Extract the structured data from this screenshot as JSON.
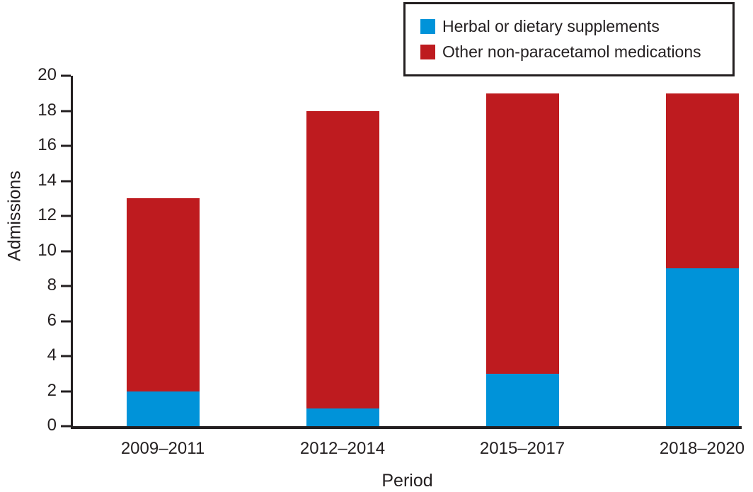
{
  "figure": {
    "background": "#ffffff",
    "text_color": "#231F20",
    "axis_color": "#231F20"
  },
  "legend": {
    "border_color": "#231F20",
    "position": "top-right"
  },
  "chart_data": {
    "type": "bar",
    "stacked": true,
    "title": "",
    "xlabel": "Period",
    "ylabel": "Admissions",
    "categories": [
      "2009–2011",
      "2012–2014",
      "2015–2017",
      "2018–2020"
    ],
    "series": [
      {
        "name": "Herbal or dietary supplements",
        "color": "#0093D9",
        "values": [
          2,
          1,
          3,
          9
        ]
      },
      {
        "name": "Other non-paracetamol medications",
        "color": "#BE1B1F",
        "values": [
          11,
          17,
          16,
          10
        ]
      }
    ],
    "totals": [
      13,
      18,
      19,
      19
    ],
    "ylim": [
      0,
      20
    ],
    "yticks": [
      0,
      2,
      4,
      6,
      8,
      10,
      12,
      14,
      16,
      18,
      20
    ],
    "grid": false,
    "legend_position": "top-right"
  }
}
